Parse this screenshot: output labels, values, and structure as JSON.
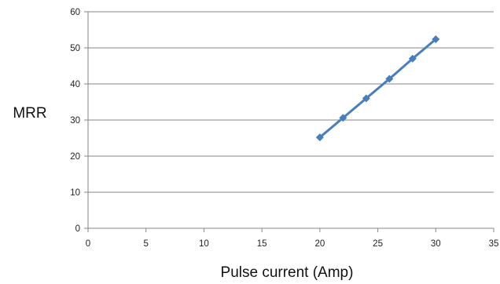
{
  "chart_data": {
    "type": "line",
    "title": "",
    "xlabel": "Pulse current (Amp)",
    "ylabel": "MRR",
    "xlim": [
      0,
      35
    ],
    "ylim": [
      0,
      60
    ],
    "x_ticks": [
      0,
      5,
      10,
      15,
      20,
      25,
      30,
      35
    ],
    "y_ticks": [
      0,
      10,
      20,
      30,
      40,
      50,
      60
    ],
    "grid": "horizontal",
    "legend": "none",
    "marker": "diamond",
    "series": [
      {
        "x": [
          20,
          22,
          24,
          26,
          28,
          30
        ],
        "values": [
          25.2,
          30.6,
          36.0,
          41.4,
          47.0,
          52.4
        ],
        "color": "#4a7ebb"
      }
    ],
    "colors": {
      "line": "#4a7ebb",
      "grid": "#878787",
      "axis": "#878787",
      "text": "#222222"
    }
  }
}
